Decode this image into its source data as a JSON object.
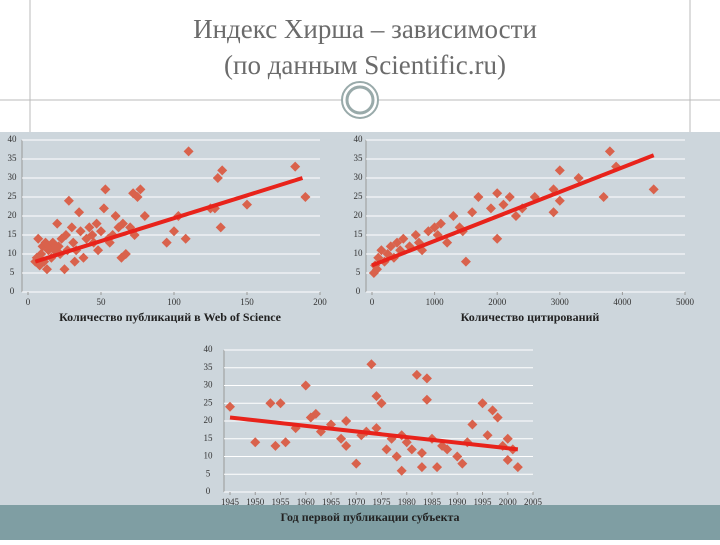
{
  "slide": {
    "title_lines": [
      "Индекс Хирша – зависимости",
      "(по данным Scientific.ru)"
    ]
  },
  "chart_data": [
    {
      "type": "scatter",
      "x_label": "Количество публикаций в Web of Science",
      "x": [
        5,
        6,
        7,
        8,
        9,
        10,
        11,
        12,
        13,
        14,
        15,
        16,
        17,
        18,
        20,
        21,
        22,
        23,
        25,
        26,
        27,
        28,
        30,
        31,
        32,
        33,
        35,
        36,
        38,
        40,
        42,
        44,
        45,
        47,
        48,
        50,
        52,
        53,
        55,
        56,
        58,
        60,
        62,
        64,
        65,
        67,
        70,
        72,
        73,
        75,
        77,
        80,
        95,
        100,
        103,
        108,
        110,
        125,
        128,
        130,
        132,
        133,
        150,
        183,
        190
      ],
      "values": [
        8,
        9,
        14,
        7,
        10,
        12,
        8,
        13,
        6,
        11,
        12,
        9,
        13,
        11,
        18,
        12,
        10,
        14,
        6,
        15,
        11,
        24,
        17,
        13,
        8,
        11,
        21,
        16,
        9,
        14,
        17,
        15,
        13,
        18,
        11,
        16,
        22,
        27,
        14,
        13,
        15,
        20,
        17,
        9,
        18,
        10,
        17,
        26,
        15,
        25,
        27,
        20,
        13,
        16,
        20,
        14,
        37,
        22,
        22,
        30,
        17,
        32,
        23,
        33,
        25
      ],
      "xlim": [
        0,
        200
      ],
      "xticks": [
        0,
        50,
        100,
        150,
        200
      ],
      "ylim": [
        0,
        40
      ],
      "yticks": [
        0,
        5,
        10,
        15,
        20,
        25,
        30,
        35,
        40
      ],
      "grid": true,
      "color": "#d9624c",
      "trendline": {
        "x": [
          5,
          188
        ],
        "y": [
          8,
          30
        ],
        "color": "#e8231b"
      }
    },
    {
      "type": "scatter",
      "x_label": "Количество цитирований",
      "x": [
        30,
        50,
        80,
        100,
        150,
        200,
        250,
        300,
        350,
        400,
        450,
        500,
        600,
        700,
        750,
        800,
        900,
        1000,
        1050,
        1100,
        1200,
        1300,
        1400,
        1450,
        1500,
        1600,
        1700,
        1900,
        2000,
        2000,
        2100,
        2200,
        2300,
        2400,
        2600,
        2900,
        2900,
        3000,
        3000,
        3300,
        3700,
        3800,
        3900,
        4500
      ],
      "values": [
        5,
        7,
        6,
        9,
        11,
        8,
        10,
        12,
        9,
        13,
        11,
        14,
        12,
        15,
        13,
        11,
        16,
        17,
        15,
        18,
        13,
        20,
        17,
        16,
        8,
        21,
        25,
        22,
        26,
        14,
        23,
        25,
        20,
        22,
        25,
        27,
        21,
        24,
        32,
        30,
        25,
        37,
        33,
        27
      ],
      "xlim": [
        0,
        5000
      ],
      "xticks": [
        0,
        1000,
        2000,
        3000,
        4000,
        5000
      ],
      "ylim": [
        0,
        40
      ],
      "yticks": [
        0,
        5,
        10,
        15,
        20,
        25,
        30,
        35,
        40
      ],
      "grid": true,
      "color": "#d9624c",
      "trendline": {
        "x": [
          0,
          4500
        ],
        "y": [
          7,
          36
        ],
        "color": "#e8231b"
      }
    },
    {
      "type": "scatter",
      "x_label": "Год первой публикации субъекта",
      "x": [
        1945,
        1950,
        1953,
        1955,
        1954,
        1956,
        1958,
        1960,
        1961,
        1962,
        1963,
        1965,
        1967,
        1968,
        1968,
        1970,
        1971,
        1972,
        1973,
        1974,
        1974,
        1975,
        1976,
        1977,
        1978,
        1979,
        1979,
        1980,
        1981,
        1982,
        1983,
        1983,
        1984,
        1984,
        1985,
        1986,
        1987,
        1988,
        1990,
        1991,
        1992,
        1993,
        1995,
        1996,
        1997,
        1998,
        1999,
        2000,
        2000,
        2001,
        2002
      ],
      "values": [
        24,
        14,
        25,
        25,
        13,
        14,
        18,
        30,
        21,
        22,
        17,
        19,
        15,
        20,
        13,
        8,
        16,
        17,
        36,
        18,
        27,
        25,
        12,
        15,
        10,
        16,
        6,
        14,
        12,
        33,
        11,
        7,
        32,
        26,
        15,
        7,
        13,
        12,
        10,
        8,
        14,
        19,
        25,
        16,
        23,
        21,
        13,
        9,
        15,
        12,
        7
      ],
      "xlim": [
        1945,
        2005
      ],
      "xticks": [
        1945,
        1950,
        1955,
        1960,
        1965,
        1970,
        1975,
        1980,
        1985,
        1990,
        1995,
        2000,
        2005
      ],
      "ylim": [
        0,
        40
      ],
      "yticks": [
        0,
        5,
        10,
        15,
        20,
        25,
        30,
        35,
        40
      ],
      "grid": true,
      "color": "#d9624c",
      "trendline": {
        "x": [
          1945,
          2002
        ],
        "y": [
          21,
          12
        ],
        "color": "#e8231b"
      }
    }
  ]
}
